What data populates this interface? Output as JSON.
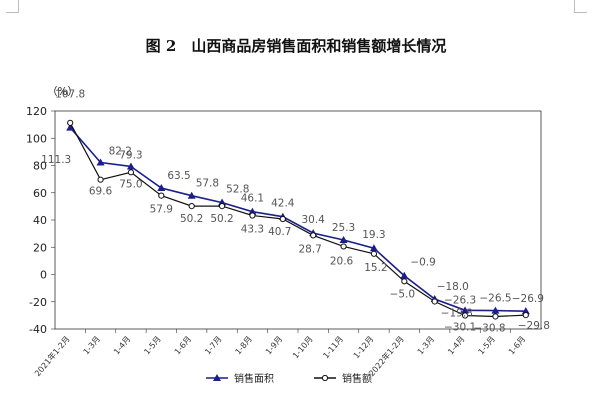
{
  "chart_data": {
    "type": "line",
    "title": "图 2　山西商品房销售面积和销售额增长情况",
    "unit_label": "（%）",
    "ylim": [
      -40,
      120
    ],
    "yticks": [
      120,
      100,
      80,
      60,
      40,
      20,
      0,
      -20,
      -40
    ],
    "grid": false,
    "legend_position": "bottom",
    "categories": [
      "2021年1-2月",
      "1-3月",
      "1-4月",
      "1-5月",
      "1-6月",
      "1-7月",
      "1-8月",
      "1-9月",
      "1-10月",
      "1-11月",
      "1-12月",
      "2022年1-2月",
      "1-3月",
      "1-4月",
      "1-5月",
      "1-6月"
    ],
    "series": [
      {
        "name": "销售面积",
        "marker": "triangle",
        "color": "#1a1f8c",
        "values": [
          107.8,
          82.2,
          79.3,
          63.5,
          57.8,
          52.8,
          46.1,
          42.4,
          30.4,
          25.3,
          19.3,
          -0.9,
          -18.0,
          -26.3,
          -26.5,
          -26.9
        ],
        "labels": [
          "107.8",
          "82.2",
          "79.3",
          "63.5",
          "57.8",
          "52.8",
          "46.1",
          "42.4",
          "30.4",
          "25.3",
          "19.3",
          "−0.9",
          "−18.0",
          "−26.3",
          "−26.5",
          "−26.9"
        ]
      },
      {
        "name": "销售额",
        "marker": "circle",
        "color": "#111111",
        "values": [
          111.3,
          69.6,
          75.0,
          57.9,
          50.2,
          50.2,
          43.3,
          40.7,
          28.7,
          20.6,
          15.2,
          -5.0,
          -19.8,
          -30.1,
          -30.8,
          -29.8
        ],
        "labels": [
          "111.3",
          "69.6",
          "75.0",
          "57.9",
          "50.2",
          "50.2",
          "43.3",
          "40.7",
          "28.7",
          "20.6",
          "15.2",
          "−5.0",
          "−19.8",
          "−30.1",
          "−30.8",
          "−29.8"
        ]
      }
    ]
  }
}
